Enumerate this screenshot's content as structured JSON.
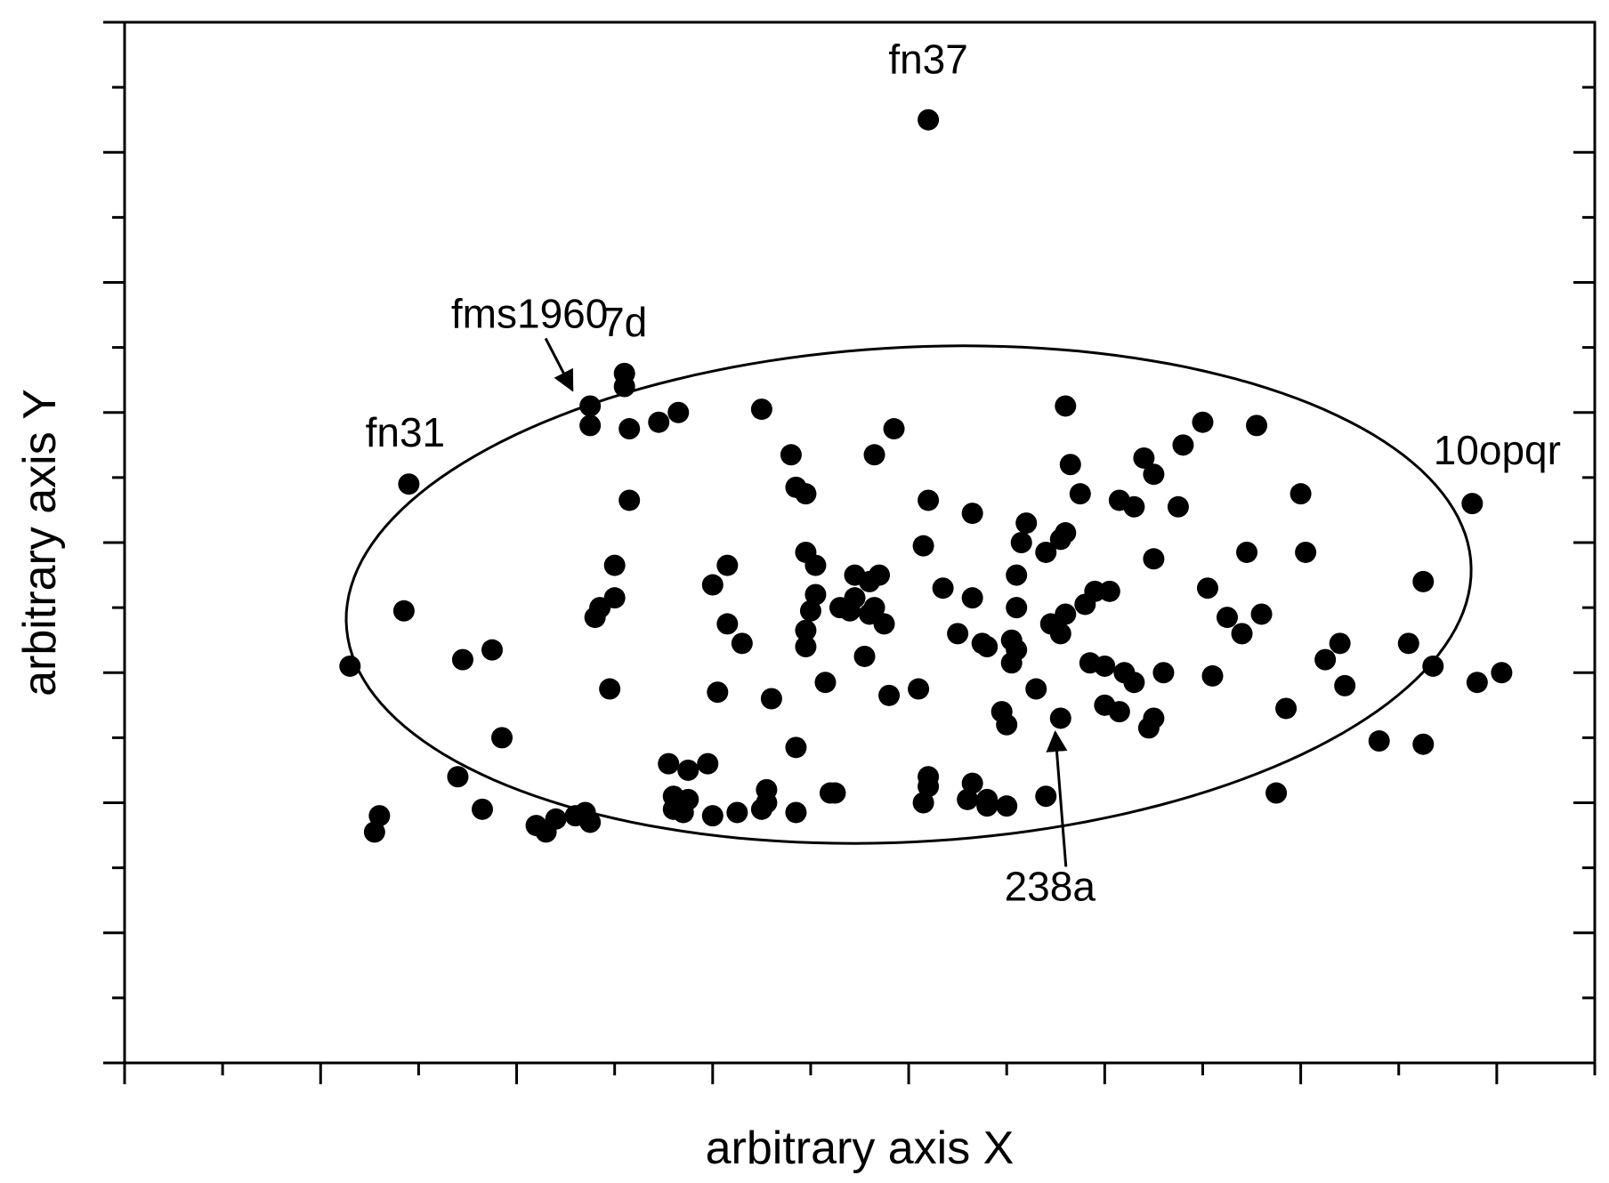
{
  "chart_data": {
    "type": "scatter",
    "title": "",
    "xlabel": "arbitrary axis X",
    "ylabel": "arbitrary axis Y",
    "xlim": [
      0,
      15
    ],
    "ylim": [
      0,
      16
    ],
    "grid": false,
    "legend": "none",
    "marker_color": "#000000",
    "series": [
      {
        "points": [
          [
            2.3,
            6.1
          ],
          [
            2.6,
            3.8
          ],
          [
            2.55,
            3.55
          ],
          [
            2.85,
            6.95
          ],
          [
            3.45,
            6.2
          ],
          [
            3.75,
            6.35
          ],
          [
            3.4,
            4.4
          ],
          [
            3.65,
            3.9
          ],
          [
            3.85,
            5.0
          ],
          [
            4.2,
            3.65
          ],
          [
            4.3,
            3.55
          ],
          [
            4.4,
            3.75
          ],
          [
            4.6,
            3.8
          ],
          [
            4.7,
            3.85
          ],
          [
            4.75,
            3.7
          ],
          [
            4.75,
            9.8
          ],
          [
            4.8,
            6.85
          ],
          [
            4.85,
            7.0
          ],
          [
            5.0,
            7.15
          ],
          [
            5.0,
            7.65
          ],
          [
            5.15,
            8.65
          ],
          [
            5.15,
            9.75
          ],
          [
            5.1,
            10.4
          ],
          [
            5.45,
            9.85
          ],
          [
            5.65,
            10.0
          ],
          [
            5.55,
            4.6
          ],
          [
            5.6,
            3.9
          ],
          [
            5.6,
            4.1
          ],
          [
            5.7,
            3.85
          ],
          [
            5.75,
            4.05
          ],
          [
            5.75,
            4.5
          ],
          [
            5.95,
            4.6
          ],
          [
            6.0,
            7.35
          ],
          [
            6.0,
            3.8
          ],
          [
            6.15,
            7.65
          ],
          [
            6.15,
            6.75
          ],
          [
            6.3,
            6.45
          ],
          [
            6.25,
            3.85
          ],
          [
            6.5,
            3.9
          ],
          [
            6.55,
            4.2
          ],
          [
            6.55,
            4.0
          ],
          [
            6.5,
            10.05
          ],
          [
            6.85,
            3.85
          ],
          [
            6.85,
            4.85
          ],
          [
            6.8,
            9.35
          ],
          [
            6.85,
            8.85
          ],
          [
            6.95,
            8.75
          ],
          [
            6.95,
            7.85
          ],
          [
            6.95,
            6.65
          ],
          [
            6.95,
            6.4
          ],
          [
            7.05,
            7.65
          ],
          [
            7.0,
            6.95
          ],
          [
            7.05,
            7.2
          ],
          [
            7.3,
            7.0
          ],
          [
            7.15,
            5.85
          ],
          [
            7.2,
            4.15
          ],
          [
            7.25,
            4.15
          ],
          [
            7.4,
            6.95
          ],
          [
            7.45,
            7.15
          ],
          [
            7.45,
            7.5
          ],
          [
            7.6,
            6.9
          ],
          [
            7.6,
            7.4
          ],
          [
            7.65,
            7.0
          ],
          [
            7.7,
            7.5
          ],
          [
            7.65,
            9.35
          ],
          [
            7.85,
            9.75
          ],
          [
            7.75,
            6.75
          ],
          [
            7.8,
            5.65
          ],
          [
            8.15,
            7.95
          ],
          [
            8.2,
            8.65
          ],
          [
            8.1,
            5.75
          ],
          [
            8.2,
            4.4
          ],
          [
            8.2,
            4.25
          ],
          [
            8.15,
            4.0
          ],
          [
            8.6,
            4.05
          ],
          [
            8.5,
            6.6
          ],
          [
            8.65,
            8.45
          ],
          [
            8.65,
            7.15
          ],
          [
            8.75,
            6.45
          ],
          [
            8.8,
            6.4
          ],
          [
            8.65,
            4.3
          ],
          [
            8.8,
            4.05
          ],
          [
            8.8,
            3.95
          ],
          [
            8.95,
            5.4
          ],
          [
            9.0,
            5.2
          ],
          [
            9.05,
            6.5
          ],
          [
            9.05,
            6.15
          ],
          [
            9.1,
            6.35
          ],
          [
            9.1,
            7.5
          ],
          [
            9.15,
            8.0
          ],
          [
            9.1,
            7.0
          ],
          [
            9.2,
            8.3
          ],
          [
            9.0,
            3.95
          ],
          [
            9.3,
            5.75
          ],
          [
            9.4,
            4.1
          ],
          [
            9.45,
            6.75
          ],
          [
            9.55,
            6.6
          ],
          [
            9.55,
            8.05
          ],
          [
            9.4,
            7.85
          ],
          [
            9.6,
            8.15
          ],
          [
            9.65,
            9.2
          ],
          [
            9.6,
            6.9
          ],
          [
            9.6,
            10.1
          ],
          [
            9.75,
            8.75
          ],
          [
            9.8,
            7.05
          ],
          [
            9.9,
            7.25
          ],
          [
            9.85,
            6.15
          ],
          [
            10.0,
            6.1
          ],
          [
            10.0,
            5.5
          ],
          [
            10.05,
            7.25
          ],
          [
            10.15,
            8.65
          ],
          [
            10.2,
            6.0
          ],
          [
            10.15,
            5.4
          ],
          [
            10.3,
            8.55
          ],
          [
            10.4,
            9.3
          ],
          [
            10.5,
            9.05
          ],
          [
            10.5,
            7.75
          ],
          [
            10.6,
            6.0
          ],
          [
            10.8,
            9.5
          ],
          [
            11.0,
            9.85
          ],
          [
            11.05,
            7.3
          ],
          [
            11.1,
            5.95
          ],
          [
            11.6,
            6.9
          ],
          [
            11.55,
            9.8
          ],
          [
            11.45,
            7.85
          ],
          [
            11.85,
            5.45
          ],
          [
            11.75,
            4.15
          ],
          [
            12.0,
            8.75
          ],
          [
            12.05,
            7.85
          ],
          [
            12.25,
            6.2
          ],
          [
            12.4,
            6.45
          ],
          [
            12.8,
            4.95
          ],
          [
            13.25,
            7.4
          ],
          [
            13.35,
            6.1
          ],
          [
            13.8,
            5.85
          ],
          [
            14.05,
            6.0
          ],
          [
            13.1,
            6.45
          ],
          [
            13.25,
            4.9
          ],
          [
            12.45,
            5.8
          ],
          [
            11.25,
            6.85
          ],
          [
            11.4,
            6.6
          ],
          [
            10.45,
            5.15
          ],
          [
            10.5,
            5.3
          ],
          [
            10.3,
            5.85
          ],
          [
            10.75,
            8.55
          ],
          [
            8.35,
            7.3
          ],
          [
            7.55,
            6.25
          ],
          [
            6.6,
            5.6
          ],
          [
            6.05,
            5.7
          ],
          [
            4.95,
            5.75
          ]
        ]
      }
    ],
    "annotations": [
      {
        "text": "fn37",
        "point": [
          8.2,
          14.5
        ]
      },
      {
        "text": "fn31",
        "point": [
          2.9,
          8.9
        ]
      },
      {
        "text": "7d",
        "point": [
          5.1,
          10.6
        ]
      },
      {
        "text": "fms1960",
        "point": [
          4.75,
          10.1
        ],
        "arrow": true
      },
      {
        "text": "10opqr",
        "point": [
          13.75,
          8.6
        ]
      },
      {
        "text": "238a",
        "point": [
          9.55,
          5.3
        ],
        "arrow": true
      }
    ],
    "ellipse": {
      "cx": 8.0,
      "cy": 7.2,
      "rx": 5.85,
      "ry": 3.85,
      "angle_deg": 12
    }
  }
}
